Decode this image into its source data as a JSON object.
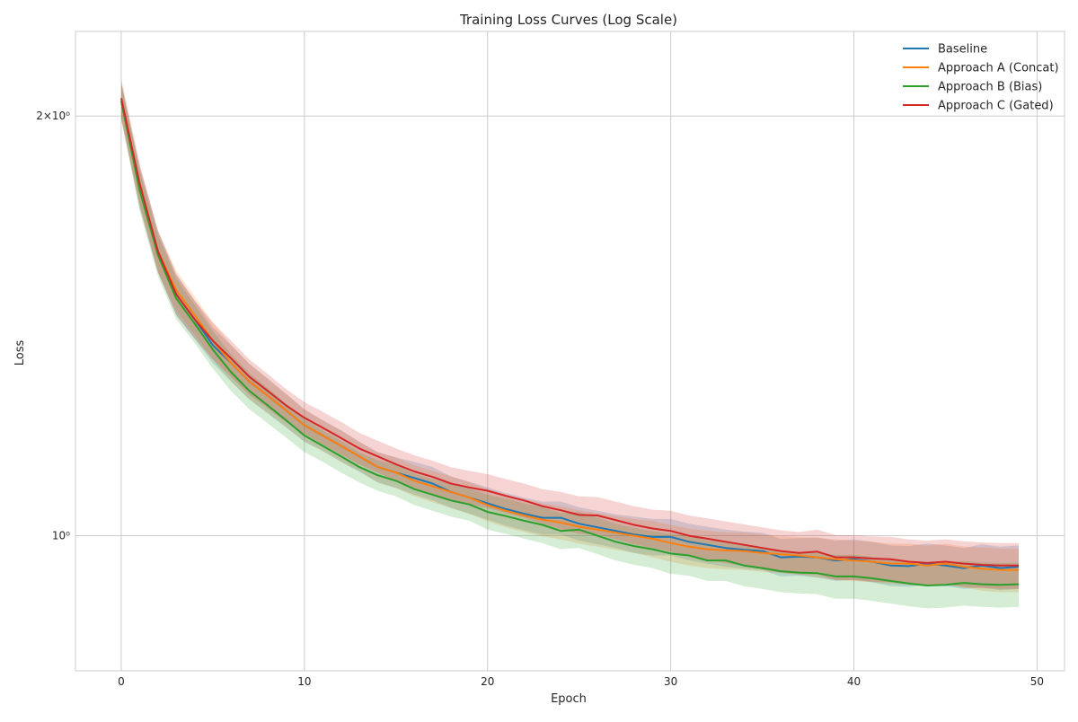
{
  "chart_data": {
    "type": "line",
    "title": "Training Loss Curves (Log Scale)",
    "xlabel": "Epoch",
    "ylabel": "Loss",
    "xlim": [
      -2.5,
      51.5
    ],
    "ylim": [
      0.8,
      2.3
    ],
    "yscale": "log",
    "grid": true,
    "legend": "top-right",
    "x_ticks": [
      0,
      10,
      20,
      30,
      40,
      50
    ],
    "y_ticks": [
      {
        "value": 2.0,
        "label": "2×10⁰"
      },
      {
        "value": 1.0,
        "label": "10⁰"
      }
    ],
    "x": [
      0,
      1,
      2,
      3,
      4,
      5,
      6,
      7,
      8,
      9,
      10,
      11,
      12,
      13,
      14,
      15,
      16,
      17,
      18,
      19,
      20,
      21,
      22,
      23,
      24,
      25,
      26,
      27,
      28,
      29,
      30,
      31,
      32,
      33,
      34,
      35,
      36,
      37,
      38,
      39,
      40,
      41,
      42,
      43,
      44,
      45,
      46,
      47,
      48,
      49
    ],
    "series": [
      {
        "name": "Baseline",
        "color": "#1f77b4",
        "values": [
          2.05,
          1.78,
          1.6,
          1.49,
          1.43,
          1.37,
          1.33,
          1.29,
          1.26,
          1.23,
          1.2,
          1.18,
          1.16,
          1.14,
          1.12,
          1.11,
          1.1,
          1.09,
          1.075,
          1.065,
          1.055,
          1.045,
          1.037,
          1.03,
          1.03,
          1.02,
          1.014,
          1.008,
          1.002,
          0.998,
          0.998,
          0.99,
          0.985,
          0.98,
          0.977,
          0.975,
          0.965,
          0.966,
          0.965,
          0.96,
          0.962,
          0.958,
          0.952,
          0.951,
          0.955,
          0.952,
          0.948,
          0.952,
          0.948,
          0.95
        ],
        "band": [
          0.06,
          0.06,
          0.055,
          0.05,
          0.045,
          0.04,
          0.04,
          0.038,
          0.036,
          0.034,
          0.032,
          0.03,
          0.03,
          0.028,
          0.028,
          0.028,
          0.03,
          0.03,
          0.028,
          0.028,
          0.028,
          0.028,
          0.028,
          0.028,
          0.028,
          0.028,
          0.028,
          0.028,
          0.03,
          0.03,
          0.03,
          0.03,
          0.03,
          0.03,
          0.03,
          0.03,
          0.03,
          0.03,
          0.032,
          0.032,
          0.032,
          0.032,
          0.032,
          0.032,
          0.032,
          0.032,
          0.032,
          0.034,
          0.034,
          0.034
        ]
      },
      {
        "name": "Approach A (Concat)",
        "color": "#ff7f0e",
        "values": [
          2.05,
          1.78,
          1.6,
          1.5,
          1.44,
          1.38,
          1.33,
          1.29,
          1.26,
          1.23,
          1.2,
          1.18,
          1.16,
          1.14,
          1.12,
          1.11,
          1.095,
          1.085,
          1.075,
          1.065,
          1.052,
          1.042,
          1.034,
          1.027,
          1.022,
          1.015,
          1.01,
          1.005,
          1.0,
          0.995,
          0.988,
          0.982,
          0.978,
          0.976,
          0.975,
          0.972,
          0.97,
          0.968,
          0.965,
          0.962,
          0.96,
          0.958,
          0.955,
          0.955,
          0.952,
          0.955,
          0.95,
          0.947,
          0.945,
          0.945
        ],
        "band": [
          0.065,
          0.06,
          0.055,
          0.05,
          0.045,
          0.042,
          0.04,
          0.038,
          0.036,
          0.034,
          0.032,
          0.03,
          0.03,
          0.028,
          0.028,
          0.028,
          0.028,
          0.028,
          0.028,
          0.028,
          0.028,
          0.028,
          0.028,
          0.028,
          0.028,
          0.028,
          0.028,
          0.028,
          0.028,
          0.03,
          0.03,
          0.03,
          0.03,
          0.03,
          0.03,
          0.03,
          0.03,
          0.03,
          0.032,
          0.032,
          0.032,
          0.032,
          0.032,
          0.032,
          0.032,
          0.032,
          0.032,
          0.034,
          0.034,
          0.034
        ]
      },
      {
        "name": "Approach B (Bias)",
        "color": "#2ca02c",
        "values": [
          2.05,
          1.77,
          1.59,
          1.48,
          1.42,
          1.36,
          1.31,
          1.27,
          1.24,
          1.21,
          1.18,
          1.16,
          1.14,
          1.12,
          1.105,
          1.095,
          1.08,
          1.07,
          1.06,
          1.053,
          1.04,
          1.033,
          1.025,
          1.018,
          1.008,
          1.01,
          1.0,
          0.99,
          0.983,
          0.978,
          0.971,
          0.968,
          0.96,
          0.96,
          0.952,
          0.948,
          0.943,
          0.941,
          0.94,
          0.935,
          0.935,
          0.932,
          0.928,
          0.924,
          0.921,
          0.922,
          0.925,
          0.923,
          0.922,
          0.923
        ],
        "band": [
          0.06,
          0.06,
          0.055,
          0.05,
          0.045,
          0.042,
          0.04,
          0.038,
          0.036,
          0.034,
          0.032,
          0.03,
          0.03,
          0.028,
          0.028,
          0.028,
          0.028,
          0.028,
          0.028,
          0.028,
          0.03,
          0.03,
          0.03,
          0.03,
          0.03,
          0.03,
          0.03,
          0.03,
          0.03,
          0.03,
          0.032,
          0.032,
          0.032,
          0.032,
          0.032,
          0.032,
          0.032,
          0.032,
          0.032,
          0.034,
          0.034,
          0.034,
          0.034,
          0.034,
          0.034,
          0.034,
          0.034,
          0.034,
          0.034,
          0.034
        ]
      },
      {
        "name": "Approach C (Gated)",
        "color": "#d62728",
        "values": [
          2.06,
          1.79,
          1.6,
          1.49,
          1.43,
          1.38,
          1.34,
          1.3,
          1.27,
          1.24,
          1.215,
          1.195,
          1.175,
          1.155,
          1.14,
          1.125,
          1.112,
          1.102,
          1.09,
          1.083,
          1.077,
          1.068,
          1.06,
          1.05,
          1.043,
          1.035,
          1.034,
          1.026,
          1.018,
          1.012,
          1.008,
          1.0,
          0.995,
          0.99,
          0.985,
          0.98,
          0.975,
          0.972,
          0.974,
          0.965,
          0.965,
          0.963,
          0.962,
          0.958,
          0.956,
          0.958,
          0.955,
          0.953,
          0.952,
          0.952
        ],
        "band": [
          0.065,
          0.06,
          0.055,
          0.05,
          0.045,
          0.042,
          0.04,
          0.038,
          0.036,
          0.034,
          0.032,
          0.032,
          0.032,
          0.03,
          0.03,
          0.03,
          0.03,
          0.03,
          0.03,
          0.03,
          0.03,
          0.03,
          0.03,
          0.03,
          0.032,
          0.032,
          0.032,
          0.032,
          0.032,
          0.032,
          0.034,
          0.034,
          0.034,
          0.034,
          0.034,
          0.034,
          0.034,
          0.034,
          0.036,
          0.036,
          0.036,
          0.036,
          0.036,
          0.036,
          0.036,
          0.036,
          0.036,
          0.036,
          0.036,
          0.036
        ]
      }
    ]
  }
}
